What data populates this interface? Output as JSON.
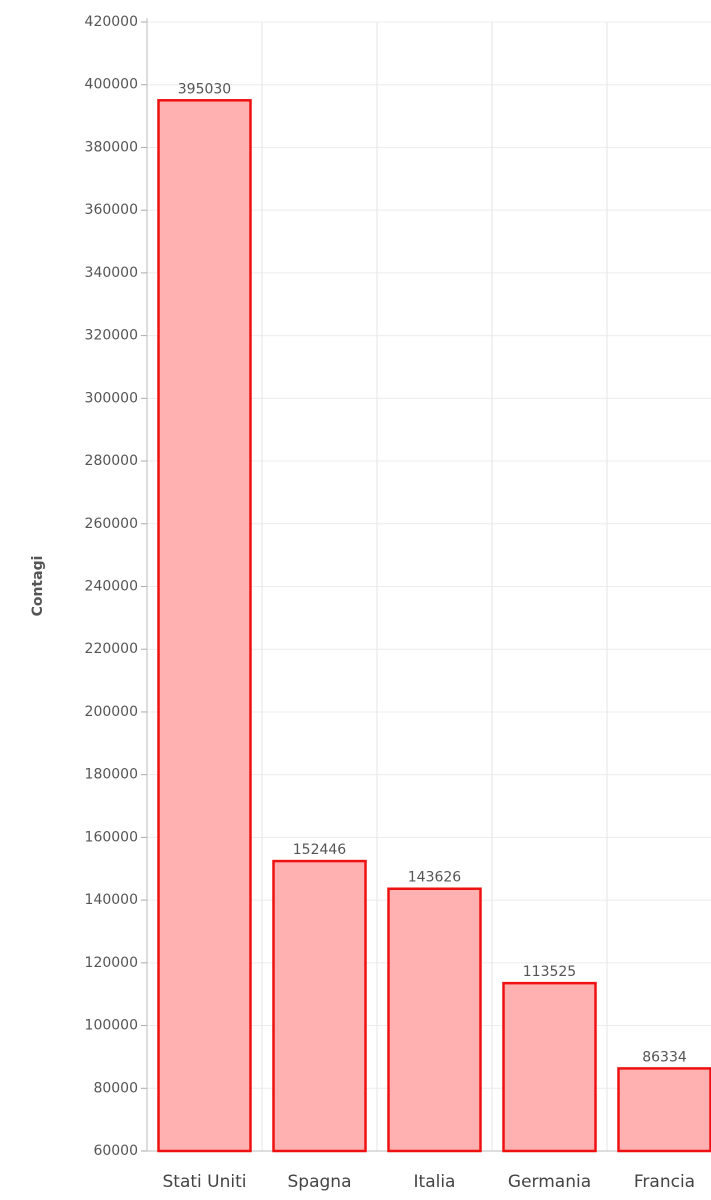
{
  "chart_data": {
    "type": "bar",
    "y_axis_label": "Contagi",
    "categories": [
      "Stati Uniti",
      "Spagna",
      "Italia",
      "Germania",
      "Francia"
    ],
    "values": [
      395030,
      152446,
      143626,
      113525,
      86334
    ],
    "color": "#ffb0b0",
    "edge_color": "#ee1111",
    "ylim": [
      60000,
      420000
    ],
    "yticks": [
      60000,
      80000,
      100000,
      120000,
      140000,
      160000,
      180000,
      200000,
      220000,
      240000,
      260000,
      280000,
      300000,
      320000,
      340000,
      360000,
      380000,
      400000,
      420000
    ],
    "grid": true
  }
}
